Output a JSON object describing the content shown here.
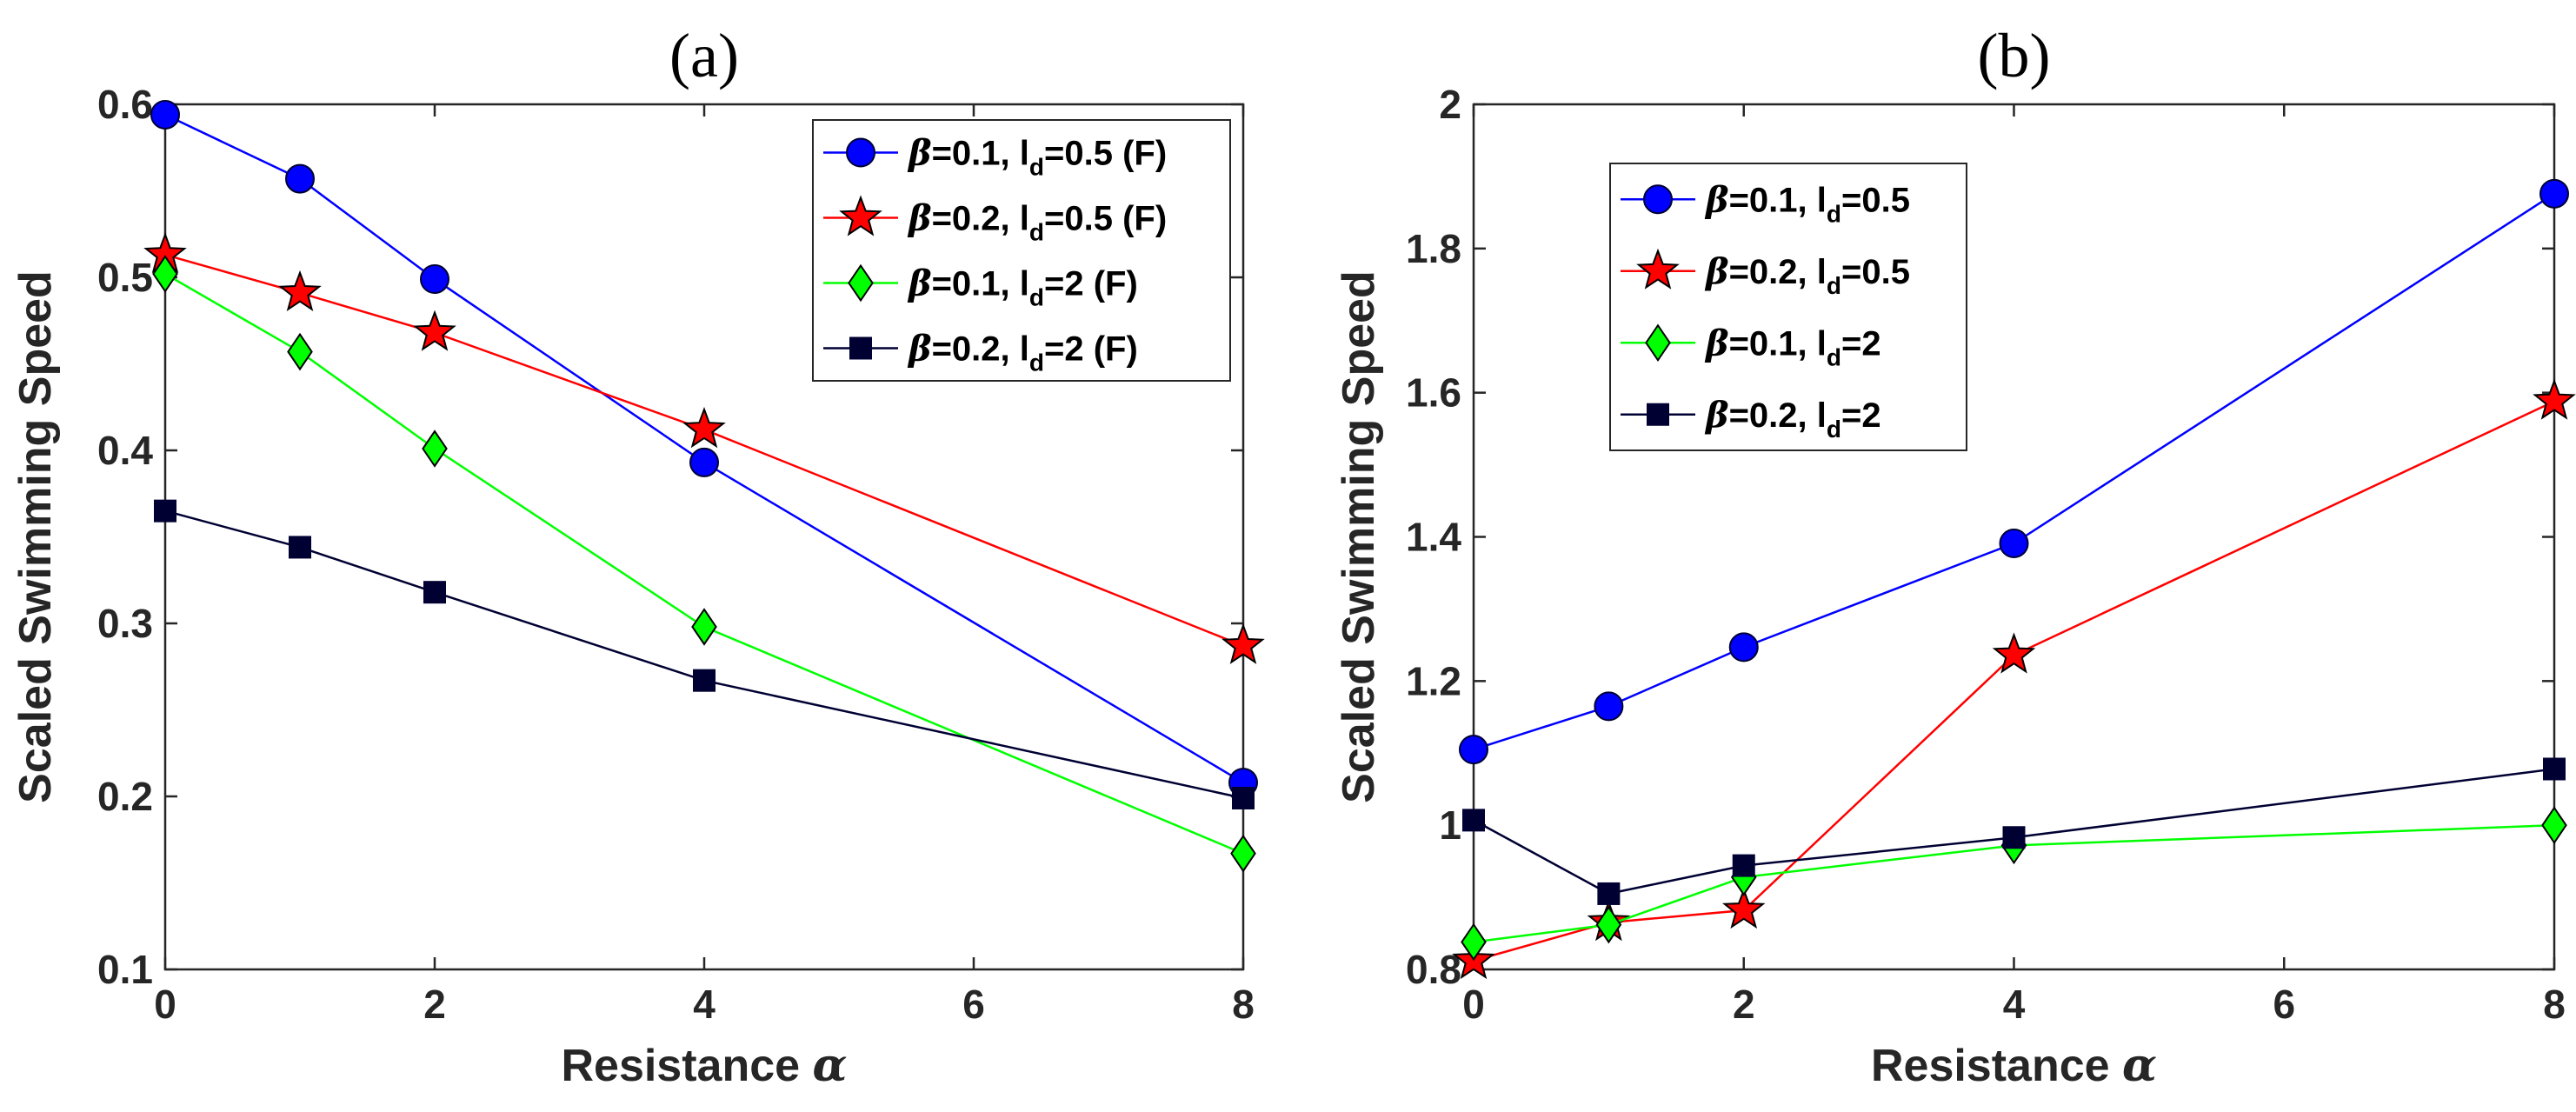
{
  "chart_data": [
    {
      "type": "line",
      "title": "(a)",
      "xlabel": "Resistance",
      "xlabel_symbol": "α",
      "ylabel": "Scaled Swimming Speed",
      "x": [
        0,
        1,
        2,
        4,
        8
      ],
      "xlim": [
        0,
        8
      ],
      "ylim": [
        0.1,
        0.6
      ],
      "xticks": [
        "0",
        "2",
        "4",
        "6",
        "8"
      ],
      "yticks": [
        "0.1",
        "0.2",
        "0.3",
        "0.4",
        "0.5",
        "0.6"
      ],
      "grid": false,
      "legend_position": "top-right",
      "series": [
        {
          "name": "β=0.1, l_d=0.5 (F)",
          "legend": {
            "beta": "β",
            "main": "=0.1, l",
            "sub": "d",
            "rest": "=0.5 (F)"
          },
          "color": "#0000ff",
          "marker": "circle",
          "marker_fill": "#0000ff",
          "values": [
            0.594,
            0.557,
            0.499,
            0.393,
            0.208
          ]
        },
        {
          "name": "β=0.2, l_d=0.5 (F)",
          "legend": {
            "beta": "β",
            "main": "=0.2, l",
            "sub": "d",
            "rest": "=0.5 (F)"
          },
          "color": "#ff0000",
          "marker": "star",
          "marker_fill": "#ff0000",
          "values": [
            0.513,
            0.491,
            0.468,
            0.412,
            0.287
          ]
        },
        {
          "name": "β=0.1, l_d=2 (F)",
          "legend": {
            "beta": "β",
            "main": "=0.1, l",
            "sub": "d",
            "rest": "=2 (F)"
          },
          "color": "#00ff00",
          "marker": "diamond",
          "marker_fill": "#00ff00",
          "values": [
            0.502,
            0.457,
            0.401,
            0.298,
            0.167
          ]
        },
        {
          "name": "β=0.2, l_d=2 (F)",
          "legend": {
            "beta": "β",
            "main": "=0.2, l",
            "sub": "d",
            "rest": "=2 (F)"
          },
          "color": "#000033",
          "marker": "square",
          "marker_fill": "#000033",
          "values": [
            0.365,
            0.344,
            0.318,
            0.267,
            0.199
          ]
        }
      ]
    },
    {
      "type": "line",
      "title": "(b)",
      "xlabel": "Resistance",
      "xlabel_symbol": "α",
      "ylabel": "Scaled Swimming Speed",
      "x": [
        0,
        1,
        2,
        4,
        8
      ],
      "xlim": [
        0,
        8
      ],
      "ylim": [
        0.8,
        2.0
      ],
      "xticks": [
        "0",
        "2",
        "4",
        "6",
        "8"
      ],
      "yticks": [
        "0.8",
        "1",
        "1.2",
        "1.4",
        "1.6",
        "1.8",
        "2"
      ],
      "grid": false,
      "legend_position": "top-left",
      "series": [
        {
          "name": "β=0.1, l_d=0.5",
          "legend": {
            "beta": "β",
            "main": "=0.1, l",
            "sub": "d",
            "rest": "=0.5"
          },
          "color": "#0000ff",
          "marker": "circle",
          "marker_fill": "#0000ff",
          "values": [
            1.105,
            1.165,
            1.247,
            1.391,
            1.876
          ]
        },
        {
          "name": "β=0.2, l_d=0.5",
          "legend": {
            "beta": "β",
            "main": "=0.2, l",
            "sub": "d",
            "rest": "=0.5"
          },
          "color": "#ff0000",
          "marker": "star",
          "marker_fill": "#ff0000",
          "values": [
            0.812,
            0.865,
            0.882,
            1.236,
            1.588
          ]
        },
        {
          "name": "β=0.1, l_d=2",
          "legend": {
            "beta": "β",
            "main": "=0.1, l",
            "sub": "d",
            "rest": "=2"
          },
          "color": "#00ff00",
          "marker": "diamond",
          "marker_fill": "#00ff00",
          "values": [
            0.838,
            0.862,
            0.928,
            0.972,
            1.0
          ]
        },
        {
          "name": "β=0.2, l_d=2",
          "legend": {
            "beta": "β",
            "main": "=0.2, l",
            "sub": "d",
            "rest": "=2"
          },
          "color": "#000033",
          "marker": "square",
          "marker_fill": "#000033",
          "values": [
            1.007,
            0.905,
            0.944,
            0.983,
            1.078
          ]
        }
      ]
    }
  ]
}
